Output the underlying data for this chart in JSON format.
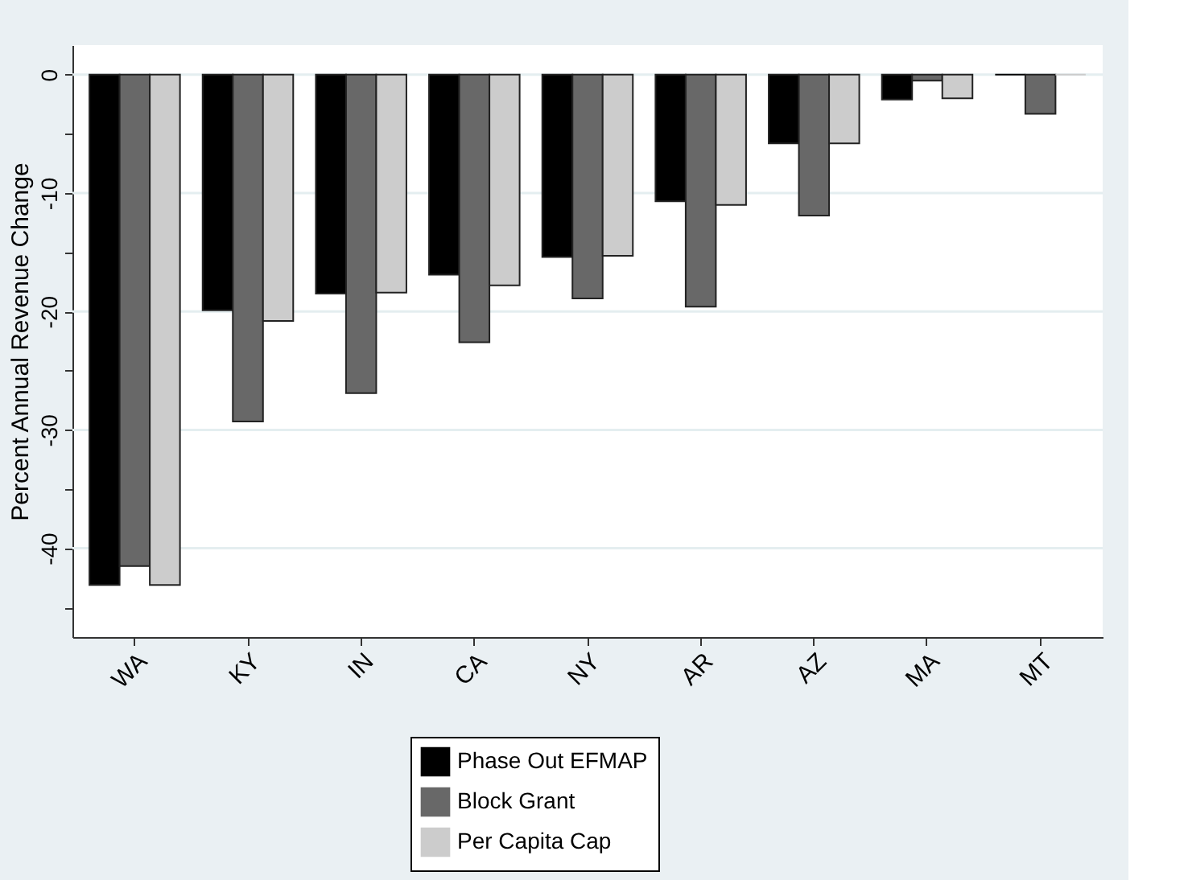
{
  "chart_data": {
    "type": "bar",
    "ylabel": "Percent Annual Revenue Change",
    "categories": [
      "WA",
      "KY",
      "IN",
      "CA",
      "NY",
      "AR",
      "AZ",
      "MA",
      "MT"
    ],
    "series": [
      {
        "name": "Phase Out EFMAP",
        "color": "#000000",
        "values": [
          -43.1,
          -19.9,
          -18.5,
          -16.9,
          -15.4,
          -10.7,
          -5.8,
          -2.1,
          0
        ]
      },
      {
        "name": "Block Grant",
        "color": "#686868",
        "values": [
          -41.5,
          -29.3,
          -26.9,
          -22.6,
          -18.9,
          -19.6,
          -11.9,
          -0.5,
          -3.3
        ]
      },
      {
        "name": "Per Capita Cap",
        "color": "#cccccc",
        "values": [
          -43.1,
          -20.8,
          -18.4,
          -17.8,
          -15.3,
          -11.0,
          -5.8,
          -2.0,
          0
        ]
      }
    ],
    "ylim": [
      -47.5,
      2.5
    ],
    "yticks": [
      0,
      {
        "value": -5,
        "label": null
      },
      -10,
      {
        "value": -15,
        "label": null
      },
      -20,
      {
        "value": -25,
        "label": null
      },
      -30,
      {
        "value": -35,
        "label": null
      },
      -40,
      {
        "value": -45,
        "label": null
      }
    ],
    "grid": "y",
    "legend": "bottom"
  }
}
